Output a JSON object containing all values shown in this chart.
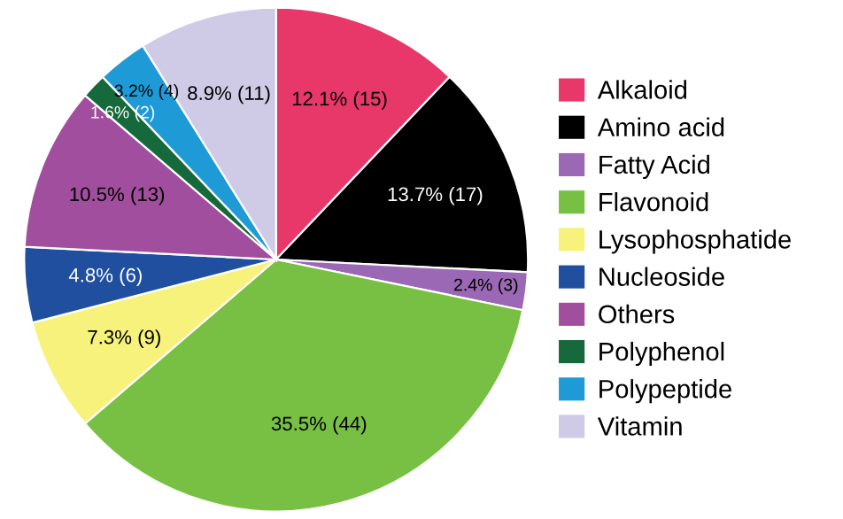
{
  "chart_data": {
    "type": "pie",
    "categories": [
      "Alkaloid",
      "Amino acid",
      "Fatty Acid",
      "Flavonoid",
      "Lysophosphatide",
      "Nucleoside",
      "Others",
      "Polyphenol",
      "Polypeptide",
      "Vitamin"
    ],
    "values": [
      15,
      17,
      3,
      44,
      9,
      6,
      13,
      2,
      4,
      11
    ],
    "value_labels": [
      "12.1% (15)",
      "13.7% (17)",
      "2.4% (3)",
      "35.5% (44)",
      "7.3% (9)",
      "4.8% (6)",
      "10.5% (13)",
      "1.6% (2)",
      "3.2% (4)",
      "8.9% (11)"
    ],
    "colors": [
      "#e8386a",
      "#000000",
      "#9a68b4",
      "#78c043",
      "#f6f27c",
      "#1f4f9e",
      "#a24e9e",
      "#16693a",
      "#1e9bd6",
      "#cfcbe6"
    ],
    "legend": "right"
  }
}
